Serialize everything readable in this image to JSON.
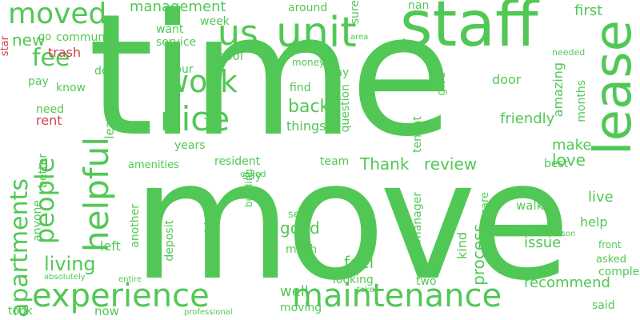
{
  "word_cloud": {
    "words": [
      {
        "text": "time",
        "tone": "green"
      },
      {
        "text": "move",
        "tone": "green"
      },
      {
        "text": "staff",
        "tone": "green"
      },
      {
        "text": "lease",
        "tone": "green"
      },
      {
        "text": "unit",
        "tone": "green"
      },
      {
        "text": "us",
        "tone": "green"
      },
      {
        "text": "nice",
        "tone": "green"
      },
      {
        "text": "work",
        "tone": "green"
      },
      {
        "text": "moved",
        "tone": "green"
      },
      {
        "text": "fee",
        "tone": "green"
      },
      {
        "text": "experience",
        "tone": "green"
      },
      {
        "text": "maintenance",
        "tone": "green"
      },
      {
        "text": "apartments",
        "tone": "green"
      },
      {
        "text": "helpful",
        "tone": "green"
      },
      {
        "text": "people",
        "tone": "green"
      },
      {
        "text": "living",
        "tone": "green"
      },
      {
        "text": "management",
        "tone": "green"
      },
      {
        "text": "around",
        "tone": "green"
      },
      {
        "text": "nan",
        "tone": "green"
      },
      {
        "text": "first",
        "tone": "green"
      },
      {
        "text": "new",
        "tone": "green"
      },
      {
        "text": "community",
        "tone": "green"
      },
      {
        "text": "want",
        "tone": "green"
      },
      {
        "text": "week",
        "tone": "green"
      },
      {
        "text": "service",
        "tone": "green"
      },
      {
        "text": "pool",
        "tone": "green"
      },
      {
        "text": "tour",
        "tone": "green"
      },
      {
        "text": "lived",
        "tone": "green"
      },
      {
        "text": "money",
        "tone": "green"
      },
      {
        "text": "way",
        "tone": "green"
      },
      {
        "text": "find",
        "tone": "green"
      },
      {
        "text": "back",
        "tone": "green"
      },
      {
        "text": "things",
        "tone": "green"
      },
      {
        "text": "friendly",
        "tone": "green"
      },
      {
        "text": "make",
        "tone": "green"
      },
      {
        "text": "love",
        "tone": "green"
      },
      {
        "text": "Thank",
        "tone": "green"
      },
      {
        "text": "review",
        "tone": "green"
      },
      {
        "text": "team",
        "tone": "green"
      },
      {
        "text": "resident",
        "tone": "green"
      },
      {
        "text": "amenities",
        "tone": "green"
      },
      {
        "text": "called",
        "tone": "green"
      },
      {
        "text": "walk",
        "tone": "green"
      },
      {
        "text": "live",
        "tone": "green"
      },
      {
        "text": "help",
        "tone": "green"
      },
      {
        "text": "see",
        "tone": "green"
      },
      {
        "text": "good",
        "tone": "green"
      },
      {
        "text": "issue",
        "tone": "green"
      },
      {
        "text": "front",
        "tone": "green"
      },
      {
        "text": "asked",
        "tone": "green"
      },
      {
        "text": "feel",
        "tone": "green"
      },
      {
        "text": "much",
        "tone": "green"
      },
      {
        "text": "complex",
        "tone": "green"
      },
      {
        "text": "well",
        "tone": "green"
      },
      {
        "text": "looking",
        "tone": "green"
      },
      {
        "text": "two",
        "tone": "green"
      },
      {
        "text": "recommend",
        "tone": "green"
      },
      {
        "text": "said",
        "tone": "green"
      },
      {
        "text": "moving",
        "tone": "green"
      },
      {
        "text": "take",
        "tone": "green"
      },
      {
        "text": "took",
        "tone": "green"
      },
      {
        "text": "now",
        "tone": "green"
      },
      {
        "text": "professional",
        "tone": "green"
      },
      {
        "text": "absolutely",
        "tone": "green"
      },
      {
        "text": "entire",
        "tone": "green"
      },
      {
        "text": "person",
        "tone": "green"
      },
      {
        "text": "need",
        "tone": "green"
      },
      {
        "text": "know",
        "tone": "green"
      },
      {
        "text": "pay",
        "tone": "green"
      },
      {
        "text": "dog",
        "tone": "green"
      },
      {
        "text": "say",
        "tone": "green"
      },
      {
        "text": "years",
        "tone": "green"
      },
      {
        "text": "door",
        "tone": "green"
      },
      {
        "text": "clean",
        "tone": "green"
      },
      {
        "text": "question",
        "tone": "green"
      },
      {
        "text": "sure",
        "tone": "green"
      },
      {
        "text": "best",
        "tone": "green"
      },
      {
        "text": "building",
        "tone": "green"
      },
      {
        "text": "care",
        "tone": "green"
      },
      {
        "text": "trash",
        "tone": "red"
      },
      {
        "text": "star",
        "tone": "red"
      },
      {
        "text": "rent",
        "tone": "red"
      },
      {
        "text": "left",
        "tone": "green"
      },
      {
        "text": "go",
        "tone": "green"
      },
      {
        "text": "needed",
        "tone": "green"
      },
      {
        "text": "area",
        "tone": "green"
      },
      {
        "text": "months",
        "tone": "green"
      },
      {
        "text": "location",
        "tone": "green"
      },
      {
        "text": "leasing",
        "tone": "green"
      },
      {
        "text": "another",
        "tone": "green"
      },
      {
        "text": "better",
        "tone": "green"
      },
      {
        "text": "anyone",
        "tone": "green"
      },
      {
        "text": "deposit",
        "tone": "green"
      },
      {
        "text": "nothing",
        "tone": "green"
      },
      {
        "text": "process",
        "tone": "green"
      },
      {
        "text": "amazing",
        "tone": "green"
      },
      {
        "text": "give",
        "tone": "green"
      },
      {
        "text": "tenant",
        "tone": "green"
      },
      {
        "text": "manager",
        "tone": "green"
      },
      {
        "text": "kind",
        "tone": "green"
      }
    ]
  },
  "colors": {
    "primary_green": "#51c855",
    "accent_red": "#c9444f",
    "background": "#ffffff"
  }
}
